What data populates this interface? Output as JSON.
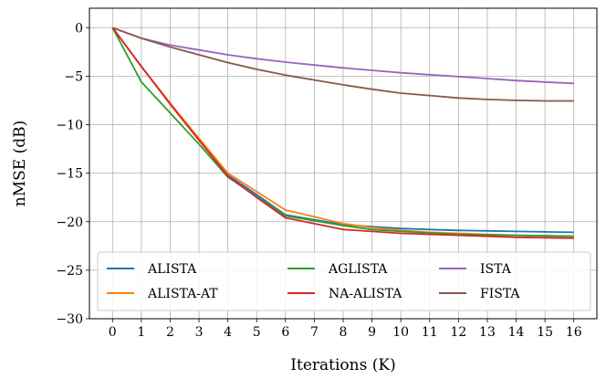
{
  "chart_data": {
    "type": "line",
    "xlabel": "Iterations (K)",
    "ylabel": "nMSE (dB)",
    "xlim": [
      -0.8,
      16.8
    ],
    "ylim": [
      -30,
      2
    ],
    "xticks": [
      0,
      1,
      2,
      3,
      4,
      5,
      6,
      7,
      8,
      9,
      10,
      11,
      12,
      13,
      14,
      15,
      16
    ],
    "yticks": [
      0,
      -5,
      -10,
      -15,
      -20,
      -25,
      -30
    ],
    "ytick_labels": [
      "0",
      "−5",
      "−10",
      "−15",
      "−20",
      "−25",
      "−30"
    ],
    "grid": true,
    "legend_position": "lower-center",
    "legend_columns": 3,
    "series": [
      {
        "name": "ALISTA",
        "color": "#1f77b4",
        "x": [
          0,
          1,
          2,
          3,
          4,
          5,
          6,
          7,
          8,
          9,
          10,
          11,
          12,
          13,
          14,
          15,
          16
        ],
        "y": [
          0,
          -4.0,
          -7.8,
          -11.5,
          -15.2,
          -17.2,
          -19.3,
          -19.8,
          -20.3,
          -20.5,
          -20.7,
          -20.8,
          -20.9,
          -20.95,
          -21.0,
          -21.05,
          -21.1
        ]
      },
      {
        "name": "ALISTA-AT",
        "color": "#ff7f0e",
        "x": [
          0,
          1,
          2,
          3,
          4,
          5,
          6,
          7,
          8,
          9,
          10,
          11,
          12,
          13,
          14,
          15,
          16
        ],
        "y": [
          0,
          -4.0,
          -7.8,
          -11.4,
          -15.0,
          -16.9,
          -18.8,
          -19.5,
          -20.2,
          -20.6,
          -20.9,
          -21.1,
          -21.2,
          -21.3,
          -21.4,
          -21.45,
          -21.5
        ]
      },
      {
        "name": "AGLISTA",
        "color": "#2ca02c",
        "x": [
          0,
          1,
          2,
          3,
          4,
          5,
          6,
          7,
          8,
          9,
          10,
          11,
          12,
          13,
          14,
          15,
          16
        ],
        "y": [
          0,
          -5.6,
          -8.8,
          -12.0,
          -15.4,
          -17.4,
          -19.4,
          -19.9,
          -20.4,
          -20.8,
          -21.0,
          -21.15,
          -21.3,
          -21.35,
          -21.4,
          -21.45,
          -21.5
        ]
      },
      {
        "name": "NA-ALISTA",
        "color": "#d62728",
        "x": [
          0,
          1,
          2,
          3,
          4,
          5,
          6,
          7,
          8,
          9,
          10,
          11,
          12,
          13,
          14,
          15,
          16
        ],
        "y": [
          0,
          -4.0,
          -7.9,
          -11.6,
          -15.3,
          -17.5,
          -19.6,
          -20.2,
          -20.8,
          -21.0,
          -21.2,
          -21.3,
          -21.4,
          -21.5,
          -21.6,
          -21.65,
          -21.7
        ]
      },
      {
        "name": "ISTA",
        "color": "#9467bd",
        "x": [
          0,
          1,
          2,
          3,
          4,
          5,
          6,
          7,
          8,
          9,
          10,
          11,
          12,
          13,
          14,
          15,
          16
        ],
        "y": [
          0,
          -1.1,
          -1.8,
          -2.3,
          -2.8,
          -3.2,
          -3.55,
          -3.85,
          -4.15,
          -4.4,
          -4.65,
          -4.85,
          -5.05,
          -5.25,
          -5.45,
          -5.6,
          -5.75
        ]
      },
      {
        "name": "FISTA",
        "color": "#8c564b",
        "x": [
          0,
          1,
          2,
          3,
          4,
          5,
          6,
          7,
          8,
          9,
          10,
          11,
          12,
          13,
          14,
          15,
          16
        ],
        "y": [
          0,
          -1.1,
          -2.0,
          -2.8,
          -3.6,
          -4.3,
          -4.9,
          -5.4,
          -5.9,
          -6.35,
          -6.75,
          -7.0,
          -7.25,
          -7.4,
          -7.5,
          -7.55,
          -7.55
        ]
      }
    ]
  }
}
